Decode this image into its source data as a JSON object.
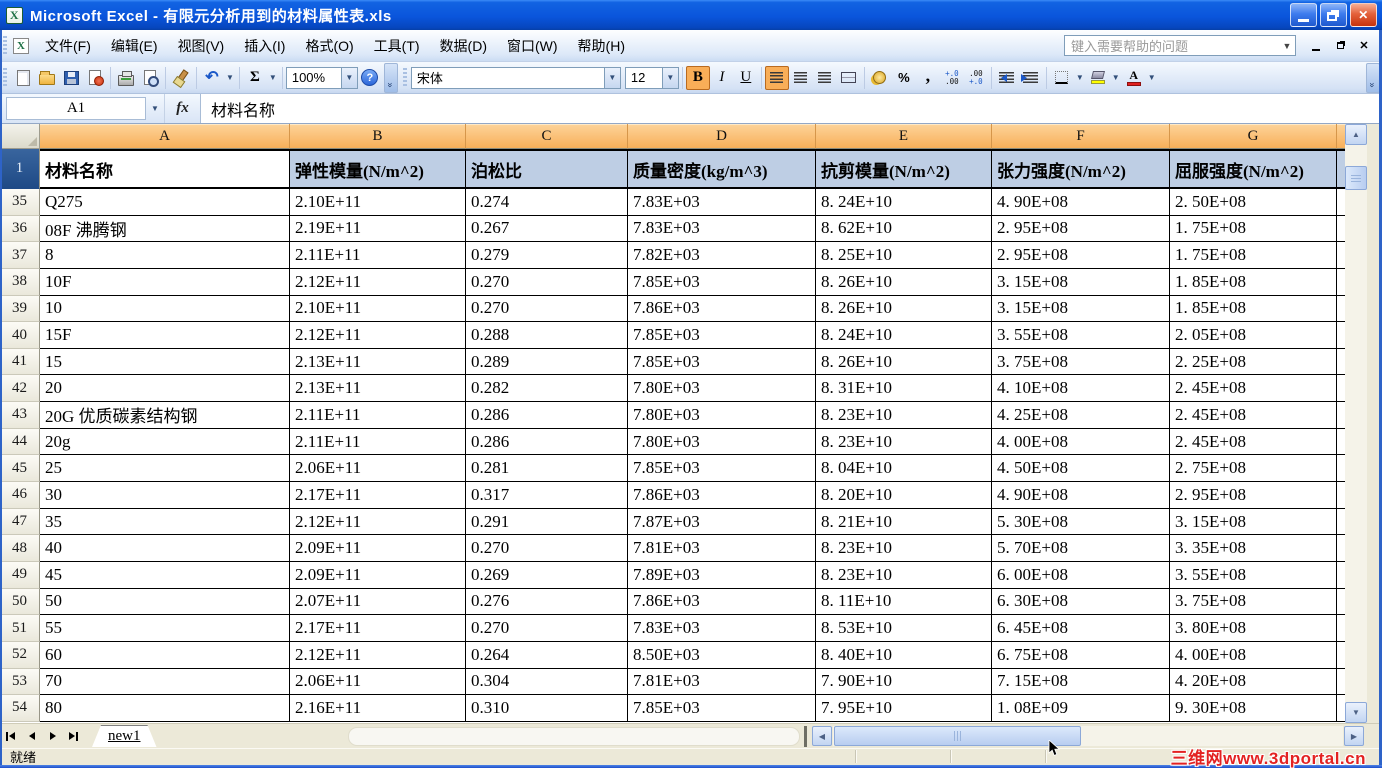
{
  "colors": {
    "header_orange": "#F8AF59",
    "header_orange_light": "#FDD49A",
    "selection_tint": "#BECEE4",
    "row1_header_bg": "#1F4A86",
    "row1_header_top": "#39659E",
    "active_button_orange": "#F9AE58",
    "watermark_red": "#E32222"
  },
  "window": {
    "title": "Microsoft Excel - 有限元分析用到的材料属性表.xls",
    "app_icon_letter": "X"
  },
  "menu": {
    "items": [
      "文件(F)",
      "编辑(E)",
      "视图(V)",
      "插入(I)",
      "格式(O)",
      "工具(T)",
      "数据(D)",
      "窗口(W)",
      "帮助(H)"
    ],
    "help_placeholder": "键入需要帮助的问题"
  },
  "toolbar": {
    "zoom_value": "100%",
    "font_name": "宋体",
    "font_size": "12",
    "bold_label": "B",
    "italic_label": "I",
    "underline_label": "U",
    "sum_label": "Σ",
    "undo_glyph": "↶",
    "percent_label": "%",
    "comma_label": ",",
    "inc_decimal_top": "+.0",
    "inc_decimal_bottom": ".00",
    "dec_decimal_top": ".00",
    "dec_decimal_bottom": "+.0",
    "font_color_letter": "A",
    "help_mark": "?"
  },
  "formula_bar": {
    "name_box": "A1",
    "fx_label": "fx",
    "content": "材料名称"
  },
  "sheet": {
    "columns": [
      "A",
      "B",
      "C",
      "D",
      "E",
      "F",
      "G"
    ],
    "header_row": {
      "number": "1",
      "cells": [
        "材料名称",
        "弹性模量(N/m^2)",
        "泊松比",
        "质量密度(kg/m^3)",
        "抗剪模量(N/m^2)",
        "张力强度(N/m^2)",
        "屈服强度(N/m^2)"
      ]
    },
    "rows": [
      {
        "n": "35",
        "cells": [
          "Q275",
          "2.10E+11",
          "0.274",
          "7.83E+03",
          "8. 24E+10",
          "4. 90E+08",
          "2. 50E+08"
        ]
      },
      {
        "n": "36",
        "cells": [
          "08F 沸腾钢",
          "2.19E+11",
          "0.267",
          "7.83E+03",
          "8. 62E+10",
          "2. 95E+08",
          "1. 75E+08"
        ]
      },
      {
        "n": "37",
        "cells": [
          "8",
          "2.11E+11",
          "0.279",
          "7.82E+03",
          "8. 25E+10",
          "2. 95E+08",
          "1. 75E+08"
        ]
      },
      {
        "n": "38",
        "cells": [
          "10F",
          "2.12E+11",
          "0.270",
          "7.85E+03",
          "8. 26E+10",
          "3. 15E+08",
          "1. 85E+08"
        ]
      },
      {
        "n": "39",
        "cells": [
          "10",
          "2.10E+11",
          "0.270",
          "7.86E+03",
          "8. 26E+10",
          "3. 15E+08",
          "1. 85E+08"
        ]
      },
      {
        "n": "40",
        "cells": [
          "15F",
          "2.12E+11",
          "0.288",
          "7.85E+03",
          "8. 24E+10",
          "3. 55E+08",
          "2. 05E+08"
        ]
      },
      {
        "n": "41",
        "cells": [
          "15",
          "2.13E+11",
          "0.289",
          "7.85E+03",
          "8. 26E+10",
          "3. 75E+08",
          "2. 25E+08"
        ]
      },
      {
        "n": "42",
        "cells": [
          "20",
          "2.13E+11",
          "0.282",
          "7.80E+03",
          "8. 31E+10",
          "4. 10E+08",
          "2. 45E+08"
        ]
      },
      {
        "n": "43",
        "cells": [
          "20G 优质碳素结构钢",
          "2.11E+11",
          "0.286",
          "7.80E+03",
          "8. 23E+10",
          "4. 25E+08",
          "2. 45E+08"
        ]
      },
      {
        "n": "44",
        "cells": [
          "20g",
          "2.11E+11",
          "0.286",
          "7.80E+03",
          "8. 23E+10",
          "4. 00E+08",
          "2. 45E+08"
        ]
      },
      {
        "n": "45",
        "cells": [
          "25",
          "2.06E+11",
          "0.281",
          "7.85E+03",
          "8. 04E+10",
          "4. 50E+08",
          "2. 75E+08"
        ]
      },
      {
        "n": "46",
        "cells": [
          "30",
          "2.17E+11",
          "0.317",
          "7.86E+03",
          "8. 20E+10",
          "4. 90E+08",
          "2. 95E+08"
        ]
      },
      {
        "n": "47",
        "cells": [
          "35",
          "2.12E+11",
          "0.291",
          "7.87E+03",
          "8. 21E+10",
          "5. 30E+08",
          "3. 15E+08"
        ]
      },
      {
        "n": "48",
        "cells": [
          "40",
          "2.09E+11",
          "0.270",
          "7.81E+03",
          "8. 23E+10",
          "5. 70E+08",
          "3. 35E+08"
        ]
      },
      {
        "n": "49",
        "cells": [
          "45",
          "2.09E+11",
          "0.269",
          "7.89E+03",
          "8. 23E+10",
          "6. 00E+08",
          "3. 55E+08"
        ]
      },
      {
        "n": "50",
        "cells": [
          "50",
          "2.07E+11",
          "0.276",
          "7.86E+03",
          "8. 11E+10",
          "6. 30E+08",
          "3. 75E+08"
        ]
      },
      {
        "n": "51",
        "cells": [
          "55",
          "2.17E+11",
          "0.270",
          "7.83E+03",
          "8. 53E+10",
          "6. 45E+08",
          "3. 80E+08"
        ]
      },
      {
        "n": "52",
        "cells": [
          "60",
          "2.12E+11",
          "0.264",
          "8.50E+03",
          "8. 40E+10",
          "6. 75E+08",
          "4. 00E+08"
        ]
      },
      {
        "n": "53",
        "cells": [
          "70",
          "2.06E+11",
          "0.304",
          "7.81E+03",
          "7. 90E+10",
          "7. 15E+08",
          "4. 20E+08"
        ]
      },
      {
        "n": "54",
        "cells": [
          "80",
          "2.16E+11",
          "0.310",
          "7.85E+03",
          "7. 95E+10",
          "1. 08E+09",
          "9. 30E+08"
        ]
      }
    ]
  },
  "tab_bar": {
    "active_tab": "new1"
  },
  "status_bar": {
    "ready": "就绪",
    "watermark": "三维网www.3dportal.cn"
  }
}
